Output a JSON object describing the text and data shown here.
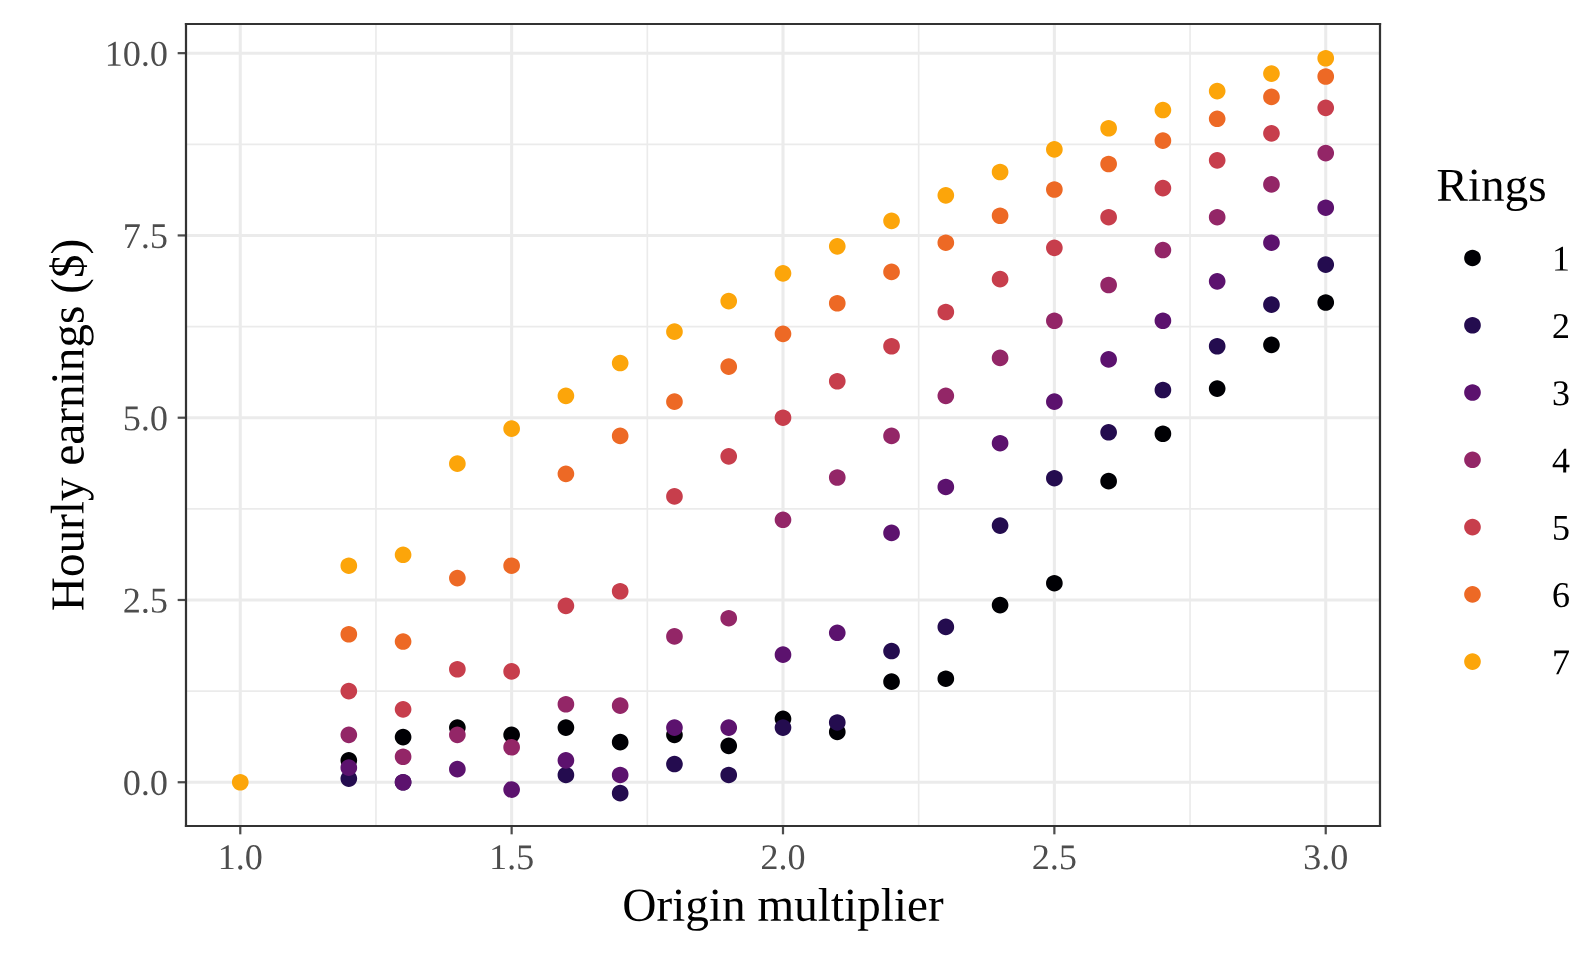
{
  "chart_data": {
    "type": "scatter",
    "xlabel": "Origin multiplier",
    "ylabel": "Hourly earnings ($)",
    "legend_title": "Rings",
    "legend": "right",
    "grid": true,
    "marker": "circle",
    "x": [
      1.0,
      1.2,
      1.3,
      1.4,
      1.5,
      1.6,
      1.7,
      1.8,
      1.9,
      2.0,
      2.1,
      2.2,
      2.3,
      2.4,
      2.5,
      2.6,
      2.7,
      2.8,
      2.9,
      3.0
    ],
    "xlim": [
      0.9,
      3.1
    ],
    "xticks": [
      {
        "value": 1.0,
        "label": "1.0"
      },
      {
        "value": 1.5,
        "label": "1.5"
      },
      {
        "value": 2.0,
        "label": "2.0"
      },
      {
        "value": 2.5,
        "label": "2.5"
      },
      {
        "value": 3.0,
        "label": "3.0"
      }
    ],
    "ylim": [
      -0.6,
      10.4
    ],
    "yticks": [
      {
        "value": 0,
        "label": "0.0"
      },
      2.5,
      {
        "value": 5,
        "label": "5.0"
      },
      7.5,
      {
        "value": 10,
        "label": "10.0"
      }
    ],
    "series": [
      {
        "name": "1",
        "color": "#000004",
        "values": [
          null,
          0.3,
          0.62,
          0.75,
          0.65,
          0.75,
          0.55,
          0.65,
          0.5,
          0.87,
          0.69,
          1.38,
          1.42,
          2.43,
          2.73,
          4.13,
          4.78,
          5.4,
          6.0,
          6.58
        ]
      },
      {
        "name": "2",
        "color": "#240c4f",
        "values": [
          null,
          0.05,
          0.0,
          null,
          null,
          0.1,
          -0.15,
          0.25,
          0.1,
          0.75,
          0.82,
          1.8,
          2.13,
          3.52,
          4.17,
          4.8,
          5.38,
          5.98,
          6.55,
          7.1
        ]
      },
      {
        "name": "3",
        "color": "#5c126e",
        "values": [
          null,
          0.2,
          0.0,
          0.18,
          -0.1,
          0.3,
          0.1,
          0.75,
          0.75,
          1.75,
          2.05,
          3.42,
          4.05,
          4.65,
          5.22,
          5.8,
          6.33,
          6.87,
          7.4,
          7.88
        ]
      },
      {
        "name": "4",
        "color": "#932667",
        "values": [
          null,
          0.65,
          0.35,
          0.65,
          0.48,
          1.07,
          1.05,
          2.0,
          2.25,
          3.6,
          4.18,
          4.75,
          5.3,
          5.82,
          6.33,
          6.82,
          7.3,
          7.75,
          8.2,
          8.63
        ]
      },
      {
        "name": "5",
        "color": "#c73e4c",
        "values": [
          null,
          1.25,
          1.0,
          1.55,
          1.52,
          2.42,
          2.62,
          3.92,
          4.47,
          5.0,
          5.5,
          5.98,
          6.45,
          6.9,
          7.33,
          7.75,
          8.15,
          8.53,
          8.9,
          9.25
        ]
      },
      {
        "name": "6",
        "color": "#ed6925",
        "values": [
          null,
          2.03,
          1.93,
          2.8,
          2.97,
          4.23,
          4.75,
          5.22,
          5.7,
          6.15,
          6.57,
          7.0,
          7.4,
          7.77,
          8.13,
          8.48,
          8.8,
          9.1,
          9.4,
          9.68
        ]
      },
      {
        "name": "7",
        "color": "#fca50a",
        "values": [
          0,
          2.97,
          3.12,
          4.37,
          4.85,
          5.3,
          5.75,
          6.18,
          6.6,
          6.98,
          7.35,
          7.7,
          8.05,
          8.37,
          8.68,
          8.97,
          9.22,
          9.48,
          9.72,
          9.93
        ]
      }
    ]
  }
}
